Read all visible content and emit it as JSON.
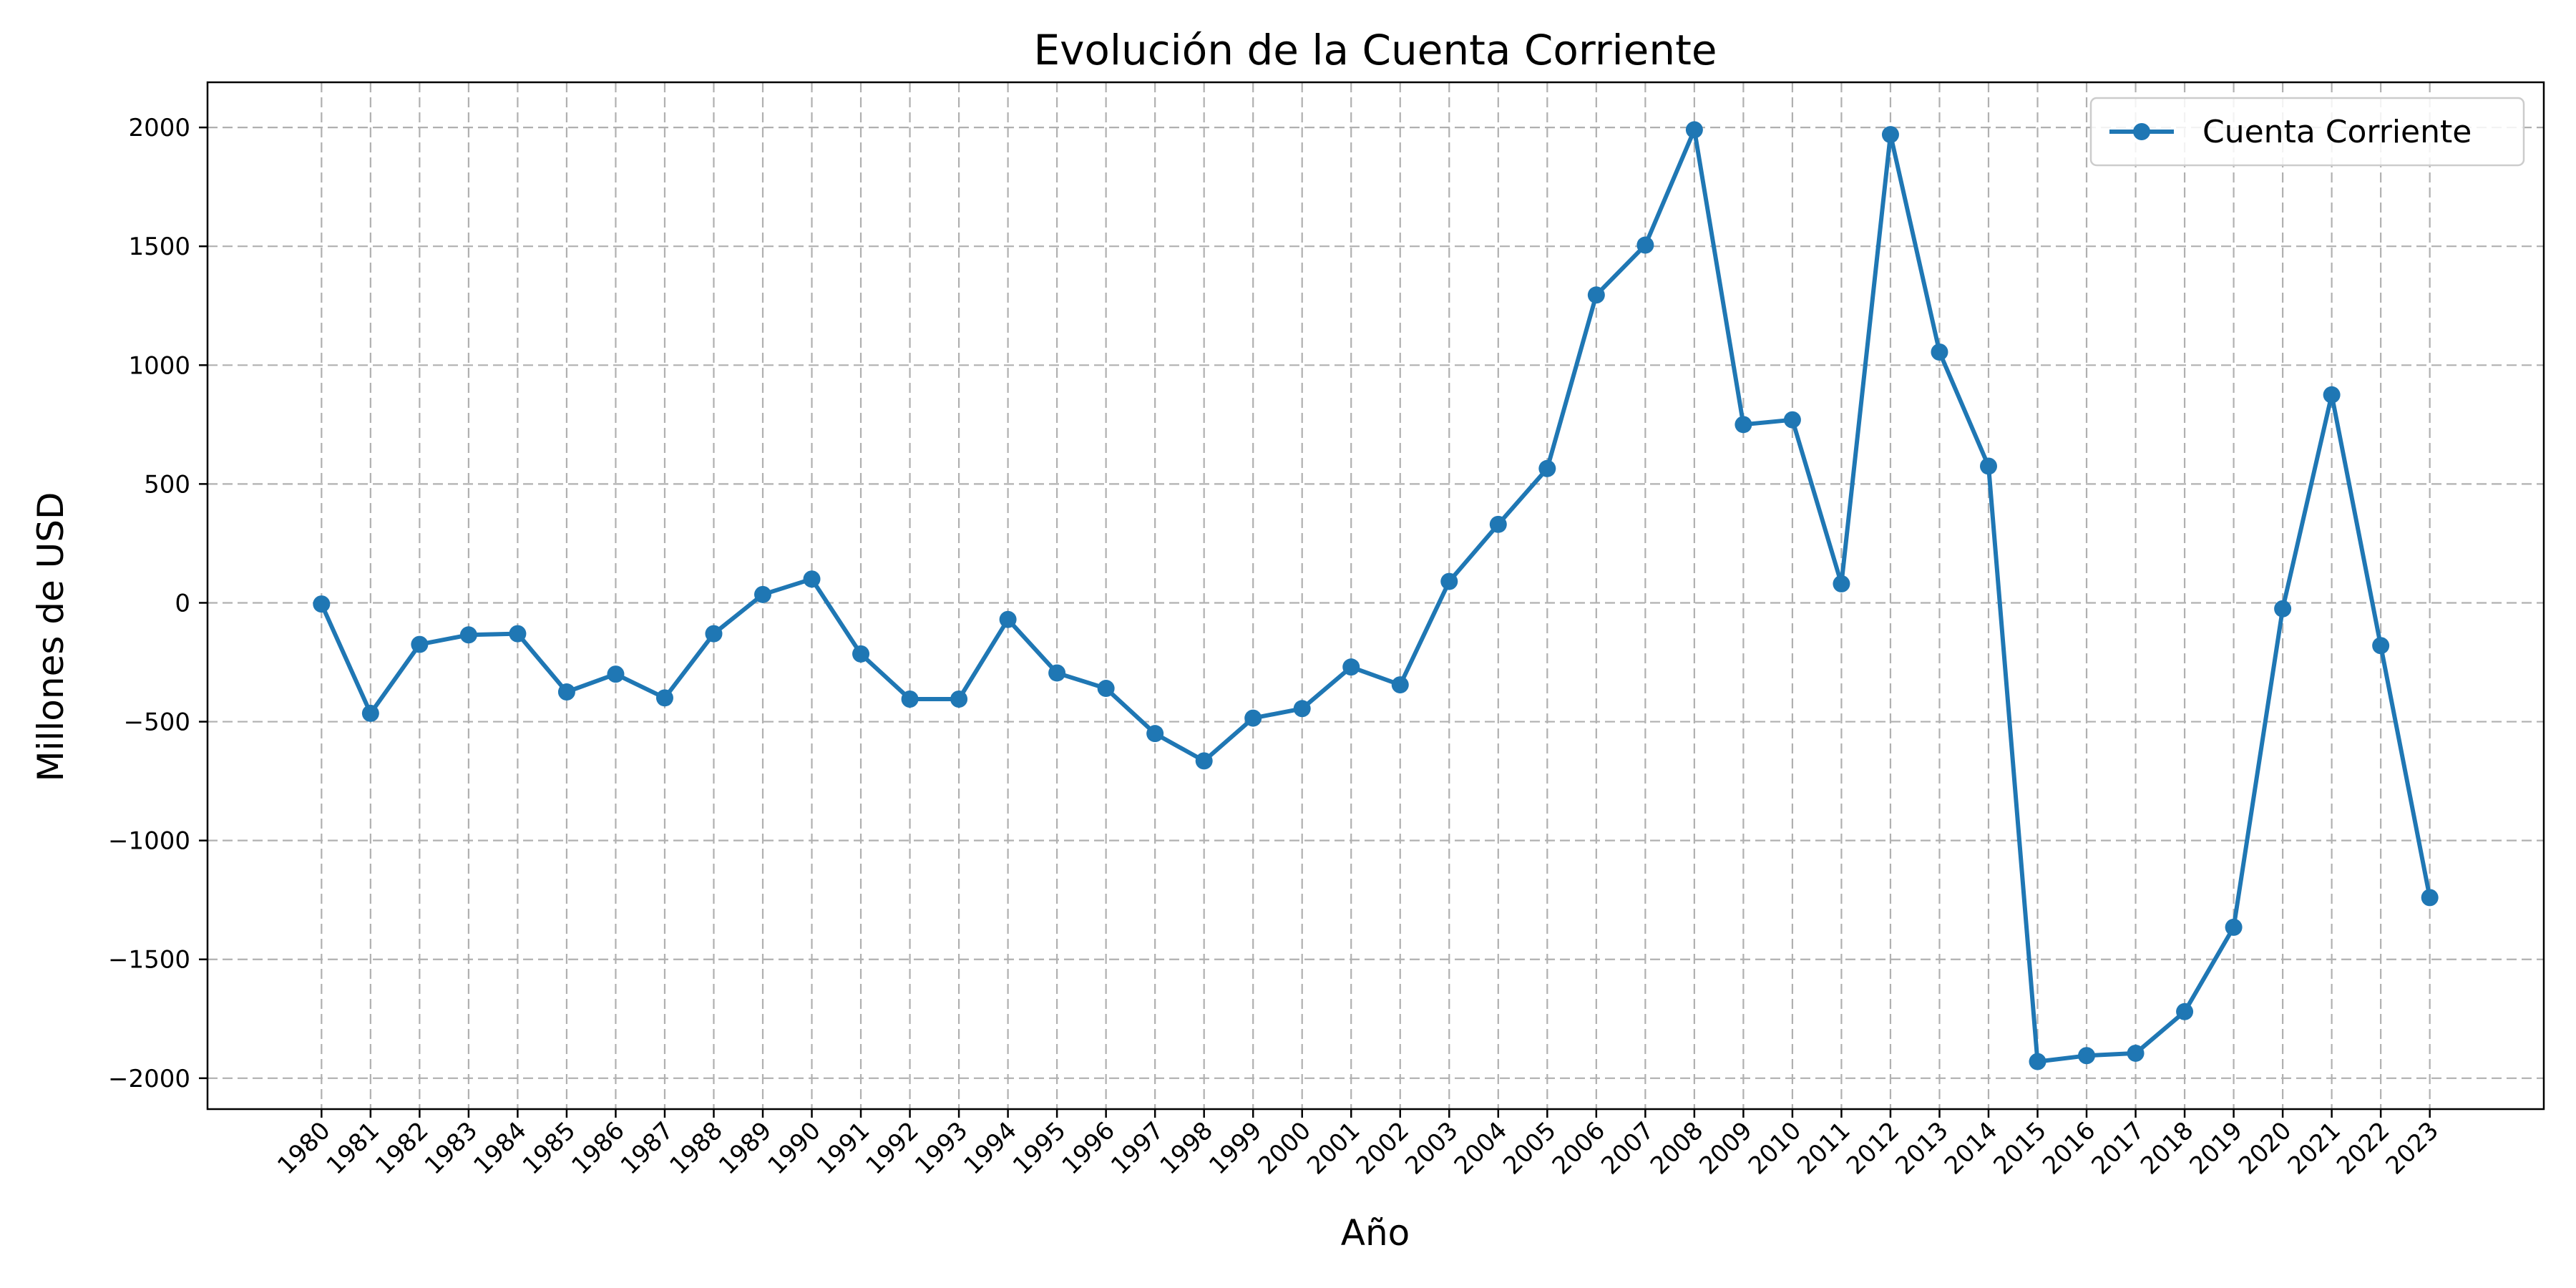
{
  "chart_data": {
    "type": "line",
    "title": "Evolución de la Cuenta Corriente",
    "xlabel": "Año",
    "ylabel": "Millones de USD",
    "x": [
      "1980",
      "1981",
      "1982",
      "1983",
      "1984",
      "1985",
      "1986",
      "1987",
      "1988",
      "1989",
      "1990",
      "1991",
      "1992",
      "1993",
      "1994",
      "1995",
      "1996",
      "1997",
      "1998",
      "1999",
      "2000",
      "2001",
      "2002",
      "2003",
      "2004",
      "2005",
      "2006",
      "2007",
      "2008",
      "2009",
      "2010",
      "2011",
      "2012",
      "2013",
      "2014",
      "2015",
      "2016",
      "2017",
      "2018",
      "2019",
      "2020",
      "2021",
      "2022",
      "2023"
    ],
    "series": [
      {
        "name": "Cuenta Corriente",
        "color": "#1f77b4",
        "marker": "circle",
        "values": [
          -5,
          -465,
          -175,
          -135,
          -130,
          -375,
          -300,
          -400,
          -130,
          35,
          100,
          -215,
          -405,
          -405,
          -70,
          -295,
          -360,
          -550,
          -665,
          -485,
          -445,
          -270,
          -345,
          90,
          330,
          565,
          1295,
          1505,
          1990,
          750,
          770,
          80,
          1970,
          1055,
          575,
          -1930,
          -1905,
          -1895,
          -1720,
          -1365,
          -25,
          875,
          -180,
          -1240
        ]
      }
    ],
    "yticks": [
      -2000,
      -1500,
      -1000,
      -500,
      0,
      500,
      1000,
      1500,
      2000
    ],
    "ylim": [
      -2130,
      2190
    ],
    "grid": true,
    "legend": "top-right"
  }
}
